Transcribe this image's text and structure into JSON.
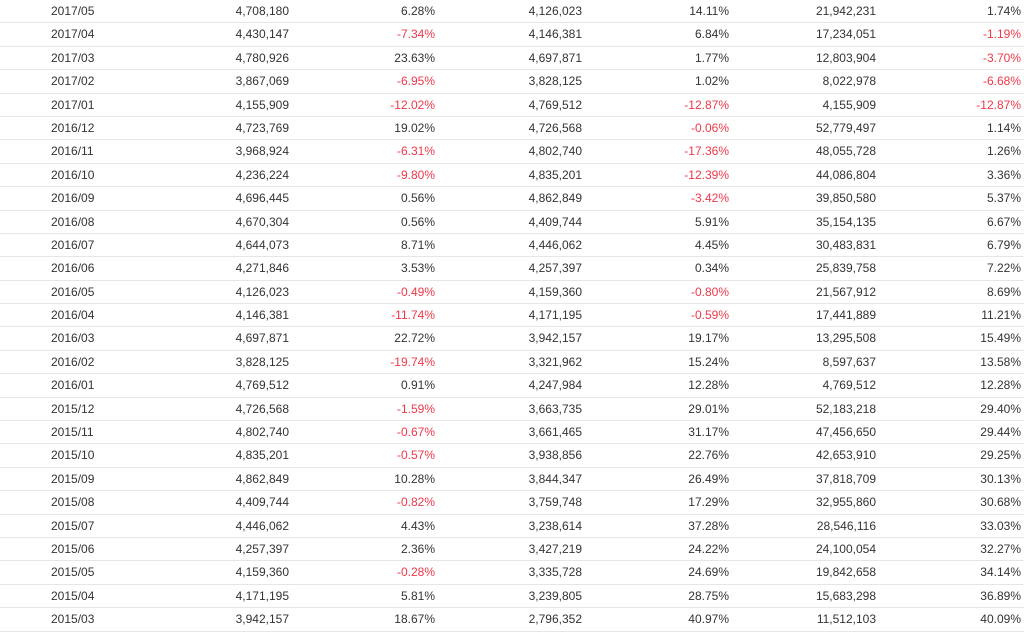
{
  "colors": {
    "text": "#333333",
    "negative": "#f0384a",
    "row_divider": "#e6e6e6"
  },
  "rows": [
    [
      "2017/05",
      "4,708,180",
      "6.28%",
      "4,126,023",
      "14.11%",
      "21,942,231",
      "1.74%"
    ],
    [
      "2017/04",
      "4,430,147",
      "-7.34%",
      "4,146,381",
      "6.84%",
      "17,234,051",
      "-1.19%"
    ],
    [
      "2017/03",
      "4,780,926",
      "23.63%",
      "4,697,871",
      "1.77%",
      "12,803,904",
      "-3.70%"
    ],
    [
      "2017/02",
      "3,867,069",
      "-6.95%",
      "3,828,125",
      "1.02%",
      "8,022,978",
      "-6.68%"
    ],
    [
      "2017/01",
      "4,155,909",
      "-12.02%",
      "4,769,512",
      "-12.87%",
      "4,155,909",
      "-12.87%"
    ],
    [
      "2016/12",
      "4,723,769",
      "19.02%",
      "4,726,568",
      "-0.06%",
      "52,779,497",
      "1.14%"
    ],
    [
      "2016/11",
      "3,968,924",
      "-6.31%",
      "4,802,740",
      "-17.36%",
      "48,055,728",
      "1.26%"
    ],
    [
      "2016/10",
      "4,236,224",
      "-9.80%",
      "4,835,201",
      "-12.39%",
      "44,086,804",
      "3.36%"
    ],
    [
      "2016/09",
      "4,696,445",
      "0.56%",
      "4,862,849",
      "-3.42%",
      "39,850,580",
      "5.37%"
    ],
    [
      "2016/08",
      "4,670,304",
      "0.56%",
      "4,409,744",
      "5.91%",
      "35,154,135",
      "6.67%"
    ],
    [
      "2016/07",
      "4,644,073",
      "8.71%",
      "4,446,062",
      "4.45%",
      "30,483,831",
      "6.79%"
    ],
    [
      "2016/06",
      "4,271,846",
      "3.53%",
      "4,257,397",
      "0.34%",
      "25,839,758",
      "7.22%"
    ],
    [
      "2016/05",
      "4,126,023",
      "-0.49%",
      "4,159,360",
      "-0.80%",
      "21,567,912",
      "8.69%"
    ],
    [
      "2016/04",
      "4,146,381",
      "-11.74%",
      "4,171,195",
      "-0.59%",
      "17,441,889",
      "11.21%"
    ],
    [
      "2016/03",
      "4,697,871",
      "22.72%",
      "3,942,157",
      "19.17%",
      "13,295,508",
      "15.49%"
    ],
    [
      "2016/02",
      "3,828,125",
      "-19.74%",
      "3,321,962",
      "15.24%",
      "8,597,637",
      "13.58%"
    ],
    [
      "2016/01",
      "4,769,512",
      "0.91%",
      "4,247,984",
      "12.28%",
      "4,769,512",
      "12.28%"
    ],
    [
      "2015/12",
      "4,726,568",
      "-1.59%",
      "3,663,735",
      "29.01%",
      "52,183,218",
      "29.40%"
    ],
    [
      "2015/11",
      "4,802,740",
      "-0.67%",
      "3,661,465",
      "31.17%",
      "47,456,650",
      "29.44%"
    ],
    [
      "2015/10",
      "4,835,201",
      "-0.57%",
      "3,938,856",
      "22.76%",
      "42,653,910",
      "29.25%"
    ],
    [
      "2015/09",
      "4,862,849",
      "10.28%",
      "3,844,347",
      "26.49%",
      "37,818,709",
      "30.13%"
    ],
    [
      "2015/08",
      "4,409,744",
      "-0.82%",
      "3,759,748",
      "17.29%",
      "32,955,860",
      "30.68%"
    ],
    [
      "2015/07",
      "4,446,062",
      "4.43%",
      "3,238,614",
      "37.28%",
      "28,546,116",
      "33.03%"
    ],
    [
      "2015/06",
      "4,257,397",
      "2.36%",
      "3,427,219",
      "24.22%",
      "24,100,054",
      "32.27%"
    ],
    [
      "2015/05",
      "4,159,360",
      "-0.28%",
      "3,335,728",
      "24.69%",
      "19,842,658",
      "34.14%"
    ],
    [
      "2015/04",
      "4,171,195",
      "5.81%",
      "3,239,805",
      "28.75%",
      "15,683,298",
      "36.89%"
    ],
    [
      "2015/03",
      "3,942,157",
      "18.67%",
      "2,796,352",
      "40.97%",
      "11,512,103",
      "40.09%"
    ]
  ]
}
